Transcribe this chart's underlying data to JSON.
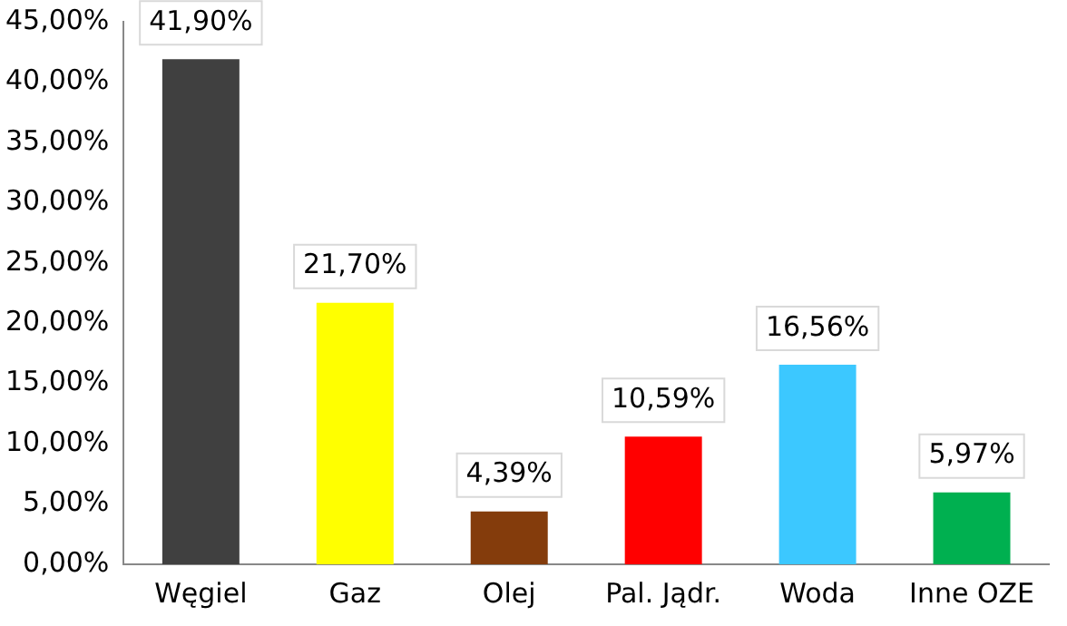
{
  "chart_data": {
    "type": "bar",
    "categories": [
      "Węgiel",
      "Gaz",
      "Olej",
      "Pal. Jądr.",
      "Woda",
      "Inne OZE"
    ],
    "values": [
      41.9,
      21.7,
      4.39,
      10.59,
      16.56,
      5.97
    ],
    "colors": [
      "#404040",
      "#ffff00",
      "#843c0c",
      "#ff0000",
      "#3cc8ff",
      "#00b050"
    ],
    "value_labels": [
      "41,90%",
      "21,70%",
      "4,39%",
      "10,59%",
      "16,56%",
      "5,97%"
    ],
    "ylim": [
      0,
      45
    ],
    "yticks": [
      {
        "value": 0,
        "label": "0,00%"
      },
      {
        "value": 5,
        "label": "5,00%"
      },
      {
        "value": 10,
        "label": "10,00%"
      },
      {
        "value": 15,
        "label": "15,00%"
      },
      {
        "value": 20,
        "label": "20,00%"
      },
      {
        "value": 25,
        "label": "25,00%"
      },
      {
        "value": 30,
        "label": "30,00%"
      },
      {
        "value": 35,
        "label": "35,00%"
      },
      {
        "value": 40,
        "label": "40,00%"
      },
      {
        "value": 45,
        "label": "45,00%"
      }
    ],
    "grid": false,
    "legend": false
  }
}
